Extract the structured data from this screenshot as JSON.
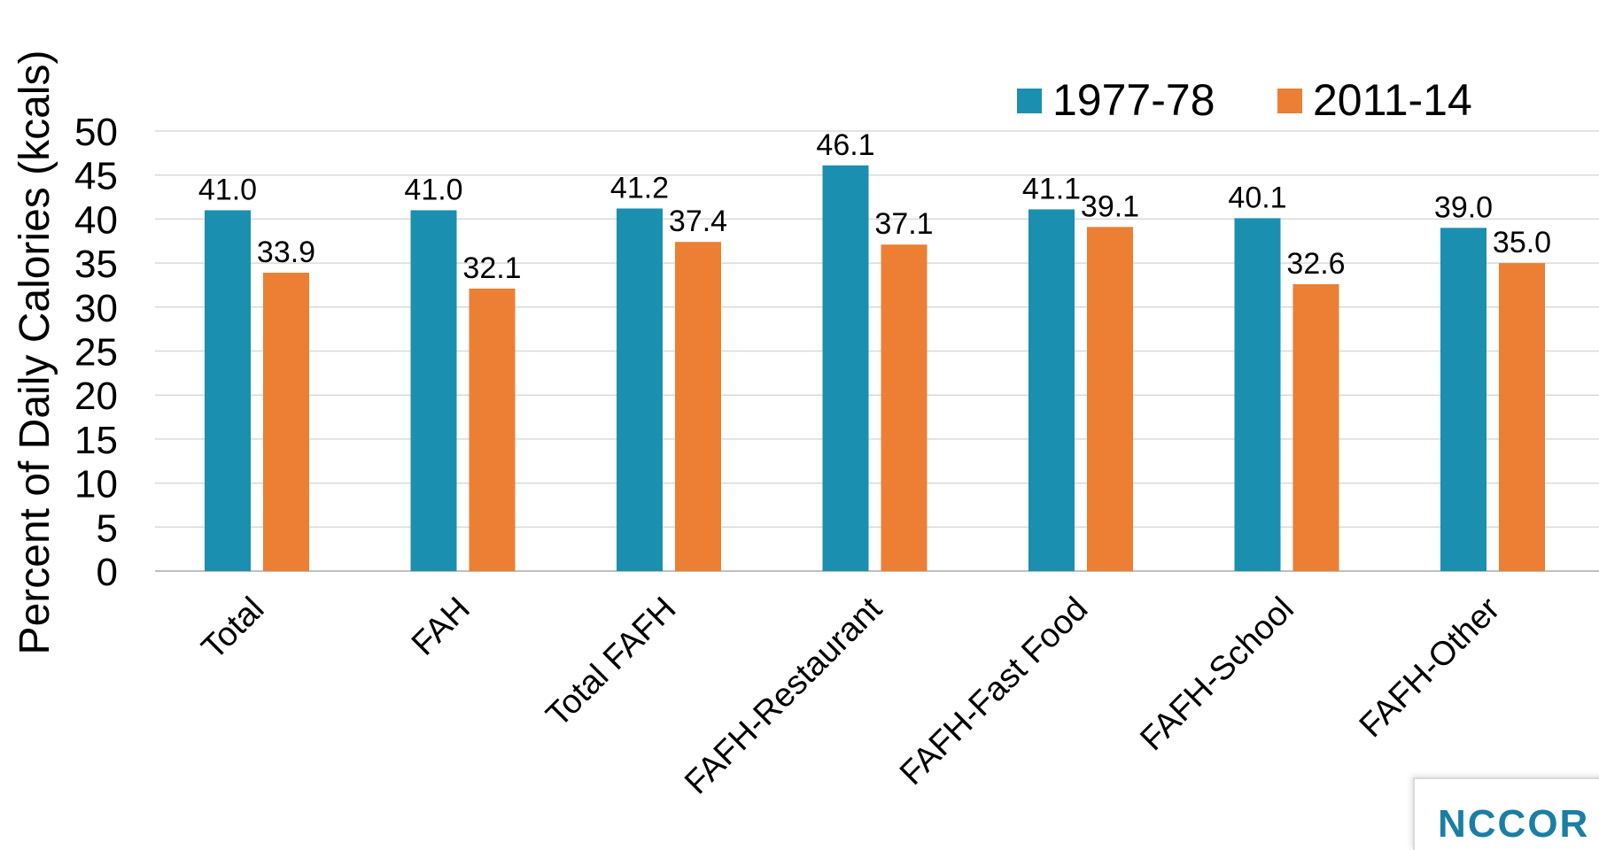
{
  "chart_data": {
    "type": "bar",
    "categories": [
      "Total",
      "FAH",
      "Total FAFH",
      "FAFH-Restaurant",
      "FAFH-Fast Food",
      "FAFH-School",
      "FAFH-Other"
    ],
    "series": [
      {
        "name": "1977-78",
        "color": "#1b8fb0",
        "values": [
          41.0,
          41.0,
          41.2,
          46.1,
          41.1,
          40.1,
          39.0
        ]
      },
      {
        "name": "2011-14",
        "color": "#ec7f33",
        "values": [
          33.9,
          32.1,
          37.4,
          37.1,
          39.1,
          32.6,
          35.0
        ]
      }
    ],
    "title": "",
    "xlabel": "",
    "ylabel": "Percent of Daily Calories (kcals)",
    "ylim": [
      0,
      50
    ],
    "yticks": [
      0,
      5,
      10,
      15,
      20,
      25,
      30,
      35,
      40,
      45,
      50
    ],
    "grid": true,
    "legend": "top-right",
    "data_labels": true
  },
  "logo": {
    "text": "NCCOR"
  }
}
